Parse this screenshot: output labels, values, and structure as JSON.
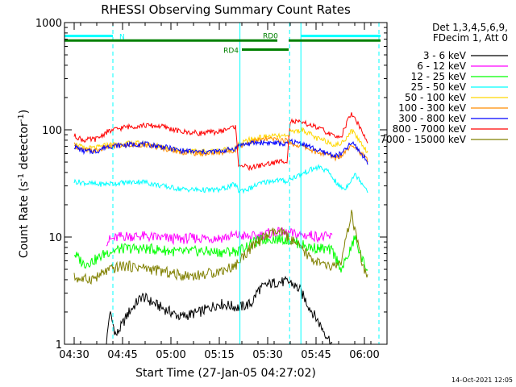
{
  "chart_data": {
    "type": "line",
    "title": "RHESSI Observing Summary Count Rates",
    "xlabel": "Start Time (27-Jan-05 04:27:02)",
    "ylabel": "Count Rate (s⁻¹ detector⁻¹)",
    "ylabel_main": "Count Rate (s",
    "ylabel_sup1": "-1",
    "ylabel_mid": " detector",
    "ylabel_sup2": "-1",
    "ylabel_end": ")",
    "y_scale": "log",
    "ylim": [
      1,
      1000
    ],
    "xlim_minutes": [
      0,
      100
    ],
    "x_ticks": [
      {
        "label": "04:30",
        "minutes": 3
      },
      {
        "label": "04:45",
        "minutes": 18
      },
      {
        "label": "05:00",
        "minutes": 33
      },
      {
        "label": "05:15",
        "minutes": 48
      },
      {
        "label": "05:30",
        "minutes": 63
      },
      {
        "label": "05:45",
        "minutes": 78
      },
      {
        "label": "06:00",
        "minutes": 93
      }
    ],
    "y_ticks": [
      {
        "label": "1",
        "value": 1
      },
      {
        "label": "10",
        "value": 10
      },
      {
        "label": "100",
        "value": 100
      },
      {
        "label": "1000",
        "value": 1000
      }
    ],
    "legend_header": [
      "Det 1,3,4,5,6,9,",
      "FDecim 1, Att 0"
    ],
    "legend_placement": "right",
    "series": [
      {
        "name": "3 - 6 keV",
        "color": "#000000",
        "points": [
          [
            13,
            1
          ],
          [
            14,
            2
          ],
          [
            16,
            1.2
          ],
          [
            20,
            2
          ],
          [
            24,
            2.8
          ],
          [
            30,
            2.2
          ],
          [
            36,
            1.8
          ],
          [
            42,
            2
          ],
          [
            48,
            2.4
          ],
          [
            54,
            2.2
          ],
          [
            58,
            2.4
          ],
          [
            60,
            3.2
          ],
          [
            63,
            3.6
          ],
          [
            66,
            3.8
          ],
          [
            70,
            3.8
          ],
          [
            73,
            3.2
          ],
          [
            76,
            2.2
          ],
          [
            80,
            1.4
          ],
          [
            83,
            1
          ]
        ]
      },
      {
        "name": "6 - 12 keV",
        "color": "#ff00ff",
        "points": [
          [
            13,
            9.2
          ],
          [
            18,
            10.2
          ],
          [
            24,
            10.2
          ],
          [
            30,
            9.8
          ],
          [
            36,
            9.6
          ],
          [
            42,
            9.8
          ],
          [
            48,
            9.8
          ],
          [
            54,
            10.4
          ],
          [
            57,
            10
          ],
          [
            60,
            10.2
          ],
          [
            63,
            10.8
          ],
          [
            66,
            11
          ],
          [
            70,
            10.8
          ],
          [
            73,
            10.4
          ],
          [
            76,
            10.4
          ],
          [
            80,
            10
          ],
          [
            83,
            10
          ]
        ]
      },
      {
        "name": "12 - 25 keV",
        "color": "#00ff00",
        "points": [
          [
            3,
            7
          ],
          [
            6,
            5.6
          ],
          [
            10,
            6.2
          ],
          [
            13,
            7.2
          ],
          [
            18,
            7.8
          ],
          [
            24,
            7.8
          ],
          [
            30,
            7.6
          ],
          [
            36,
            7.2
          ],
          [
            42,
            7.4
          ],
          [
            48,
            7.2
          ],
          [
            54,
            7.4
          ],
          [
            57,
            8.4
          ],
          [
            60,
            9.2
          ],
          [
            63,
            9.6
          ],
          [
            66,
            9.6
          ],
          [
            70,
            9.4
          ],
          [
            73,
            8.6
          ],
          [
            76,
            8
          ],
          [
            80,
            7.8
          ],
          [
            83,
            7.4
          ],
          [
            86,
            5
          ],
          [
            89,
            8
          ],
          [
            90,
            10
          ],
          [
            91,
            8
          ],
          [
            93,
            5.5
          ],
          [
            94,
            5
          ]
        ]
      },
      {
        "name": "25 - 50 keV",
        "color": "#00ffff",
        "points": [
          [
            3,
            33
          ],
          [
            10,
            31
          ],
          [
            18,
            32
          ],
          [
            24,
            33
          ],
          [
            30,
            30
          ],
          [
            36,
            28
          ],
          [
            42,
            27.5
          ],
          [
            48,
            27.5
          ],
          [
            53,
            31
          ],
          [
            54,
            27
          ],
          [
            57,
            28
          ],
          [
            60,
            31
          ],
          [
            63,
            33
          ],
          [
            66,
            34
          ],
          [
            69,
            33
          ],
          [
            70,
            35
          ],
          [
            73,
            38
          ],
          [
            76,
            42
          ],
          [
            79,
            45
          ],
          [
            82,
            40
          ],
          [
            85,
            30
          ],
          [
            87,
            28
          ],
          [
            89,
            35
          ],
          [
            90,
            38
          ],
          [
            91,
            36
          ],
          [
            93,
            30
          ],
          [
            94,
            27
          ]
        ]
      },
      {
        "name": "50 - 100 keV",
        "color": "#ffd700",
        "points": [
          [
            3,
            75
          ],
          [
            6,
            67
          ],
          [
            10,
            68
          ],
          [
            13,
            72
          ],
          [
            18,
            74
          ],
          [
            24,
            75
          ],
          [
            30,
            70
          ],
          [
            36,
            64
          ],
          [
            42,
            62
          ],
          [
            48,
            64
          ],
          [
            53,
            68
          ],
          [
            54,
            72
          ],
          [
            57,
            80
          ],
          [
            60,
            84
          ],
          [
            63,
            87
          ],
          [
            66,
            87
          ],
          [
            69,
            86
          ],
          [
            70,
            95
          ],
          [
            72,
            98
          ],
          [
            74,
            100
          ],
          [
            76,
            92
          ],
          [
            78,
            83
          ],
          [
            80,
            80
          ],
          [
            82,
            77
          ],
          [
            84,
            72
          ],
          [
            86,
            75
          ],
          [
            88,
            90
          ],
          [
            89,
            98
          ],
          [
            90,
            92
          ],
          [
            92,
            75
          ],
          [
            94,
            62
          ]
        ]
      },
      {
        "name": "100 - 300 keV",
        "color": "#ff8c00",
        "points": [
          [
            3,
            72
          ],
          [
            6,
            64
          ],
          [
            10,
            64
          ],
          [
            13,
            69
          ],
          [
            18,
            71
          ],
          [
            24,
            73
          ],
          [
            30,
            68
          ],
          [
            36,
            62
          ],
          [
            42,
            60
          ],
          [
            48,
            61
          ],
          [
            53,
            65
          ],
          [
            54,
            70
          ],
          [
            57,
            76
          ],
          [
            60,
            80
          ],
          [
            63,
            82
          ],
          [
            66,
            81
          ],
          [
            69,
            79
          ],
          [
            70,
            75
          ],
          [
            72,
            72
          ],
          [
            74,
            70
          ],
          [
            76,
            66
          ],
          [
            78,
            62
          ],
          [
            80,
            60
          ],
          [
            82,
            58
          ],
          [
            84,
            55
          ],
          [
            86,
            58
          ],
          [
            88,
            68
          ],
          [
            89,
            74
          ],
          [
            90,
            70
          ],
          [
            92,
            60
          ],
          [
            94,
            52
          ]
        ]
      },
      {
        "name": "300 - 800 keV",
        "color": "#0000ff",
        "points": [
          [
            3,
            70
          ],
          [
            6,
            63
          ],
          [
            10,
            63
          ],
          [
            13,
            70
          ],
          [
            18,
            72
          ],
          [
            24,
            74
          ],
          [
            30,
            70
          ],
          [
            36,
            64
          ],
          [
            42,
            62
          ],
          [
            48,
            63
          ],
          [
            53,
            67
          ],
          [
            54,
            72
          ],
          [
            57,
            74
          ],
          [
            60,
            76
          ],
          [
            63,
            76
          ],
          [
            66,
            75
          ],
          [
            69,
            73
          ],
          [
            70,
            78
          ],
          [
            72,
            76
          ],
          [
            74,
            74
          ],
          [
            76,
            70
          ],
          [
            78,
            65
          ],
          [
            80,
            62
          ],
          [
            82,
            60
          ],
          [
            84,
            57
          ],
          [
            86,
            60
          ],
          [
            88,
            70
          ],
          [
            89,
            75
          ],
          [
            90,
            72
          ],
          [
            92,
            60
          ],
          [
            94,
            50
          ]
        ]
      },
      {
        "name": "800 - 7000 keV",
        "color": "#ff0000",
        "points": [
          [
            3,
            88
          ],
          [
            6,
            80
          ],
          [
            10,
            82
          ],
          [
            13,
            95
          ],
          [
            18,
            105
          ],
          [
            24,
            110
          ],
          [
            30,
            108
          ],
          [
            36,
            96
          ],
          [
            42,
            93
          ],
          [
            48,
            96
          ],
          [
            53,
            108
          ],
          [
            54,
            48
          ],
          [
            57,
            44
          ],
          [
            60,
            46
          ],
          [
            63,
            48
          ],
          [
            66,
            50
          ],
          [
            69,
            52
          ],
          [
            70,
            120
          ],
          [
            72,
            118
          ],
          [
            74,
            115
          ],
          [
            76,
            112
          ],
          [
            78,
            105
          ],
          [
            80,
            100
          ],
          [
            82,
            92
          ],
          [
            84,
            85
          ],
          [
            86,
            90
          ],
          [
            88,
            125
          ],
          [
            89,
            140
          ],
          [
            90,
            130
          ],
          [
            92,
            100
          ],
          [
            94,
            75
          ]
        ]
      },
      {
        "name": "7000 - 15000 keV",
        "color": "#808000",
        "points": [
          [
            3,
            4.2
          ],
          [
            6,
            4
          ],
          [
            10,
            4.2
          ],
          [
            13,
            4.8
          ],
          [
            18,
            5.4
          ],
          [
            24,
            5.2
          ],
          [
            30,
            4.8
          ],
          [
            36,
            4.4
          ],
          [
            42,
            4.4
          ],
          [
            48,
            4.8
          ],
          [
            53,
            5.4
          ],
          [
            56,
            7
          ],
          [
            59,
            8.5
          ],
          [
            62,
            10
          ],
          [
            65,
            11
          ],
          [
            68,
            10.8
          ],
          [
            71,
            9
          ],
          [
            74,
            7.5
          ],
          [
            76,
            6.5
          ],
          [
            80,
            5.5
          ],
          [
            83,
            5.2
          ],
          [
            86,
            6
          ],
          [
            88,
            12
          ],
          [
            89,
            16
          ],
          [
            90,
            12
          ],
          [
            92,
            6
          ],
          [
            94,
            4
          ]
        ]
      }
    ],
    "annotations": [
      {
        "label": "N",
        "color": "#00ffff",
        "y_level": 750,
        "segments": [
          [
            0,
            15
          ],
          [
            73.3,
            98
          ]
        ]
      },
      {
        "label": "RD0",
        "color": "#008000",
        "y_level": 680,
        "segments": [
          [
            0,
            66
          ],
          [
            69.5,
            98
          ]
        ]
      },
      {
        "label": "RD4",
        "color": "#008000",
        "y_level": 560,
        "segments": [
          [
            55,
            69.5
          ]
        ]
      }
    ],
    "vertical_lines_solid": [
      0,
      54.4,
      73.3
    ],
    "vertical_lines_dashed": [
      15,
      69.8,
      97.5
    ],
    "footer_date": "14-Oct-2021 12:05"
  }
}
